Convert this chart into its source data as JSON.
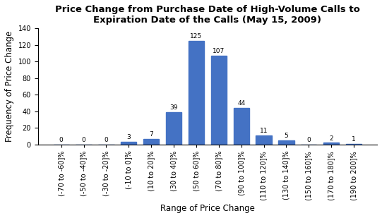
{
  "title": "Price Change from Purchase Date of High-Volume Calls to\nExpiration Date of the Calls (May 15, 2009)",
  "xlabel": "Range of Price Change",
  "ylabel": "Frequency of Price Change",
  "categories": [
    "(-70 to -60]%",
    "(-50 to -40]%",
    "(-30 to -20]%",
    "(-10 to 0]%",
    "(10 to 20]%",
    "(30 to 40]%",
    "(50 to 60]%",
    "(70 to 80]%",
    "(90 to 100]%",
    "(110 to 120]%",
    "(130 to 140]%",
    "(150 to 160]%",
    "(170 to 180]%",
    "(190 to 200]%"
  ],
  "bar_values": [
    0,
    0,
    0,
    3,
    7,
    39,
    125,
    107,
    44,
    11,
    5,
    0,
    2,
    1
  ],
  "bar_color": "#4472C4",
  "ylim": [
    0,
    140
  ],
  "yticks": [
    0,
    20,
    40,
    60,
    80,
    100,
    120,
    140
  ],
  "title_fontsize": 9.5,
  "label_fontsize": 8.5,
  "tick_fontsize": 7,
  "annot_fontsize": 6.5
}
